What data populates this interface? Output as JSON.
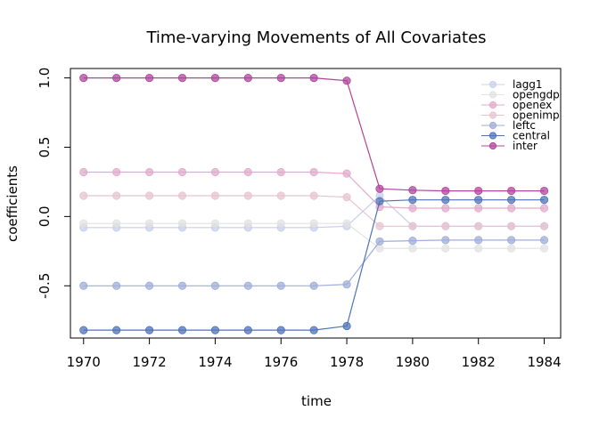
{
  "chart_data": {
    "type": "line",
    "title": "Time-varying Movements of All Covariates",
    "xlabel": "time",
    "ylabel": "coefficients",
    "x": [
      1970,
      1971,
      1972,
      1973,
      1974,
      1975,
      1976,
      1977,
      1978,
      1979,
      1980,
      1981,
      1982,
      1983,
      1984
    ],
    "xticks": [
      1970,
      1972,
      1974,
      1976,
      1978,
      1980,
      1982,
      1984
    ],
    "yticks": [
      -0.5,
      0.0,
      0.5,
      1.0
    ],
    "ytick_labels": [
      "-0.5",
      "0.0",
      "0.5",
      "1.0"
    ],
    "xlim": [
      1969.6,
      1984.5
    ],
    "ylim": [
      -0.877,
      1.068
    ],
    "grid": false,
    "legend_position": "top-right",
    "series": [
      {
        "name": "lagg1",
        "color": "#c9cfea",
        "values": [
          -0.08,
          -0.08,
          -0.08,
          -0.08,
          -0.08,
          -0.08,
          -0.08,
          -0.08,
          -0.07,
          0.15,
          -0.07,
          -0.07,
          -0.07,
          -0.07,
          -0.07
        ]
      },
      {
        "name": "opengdp",
        "color": "#e2e2e2",
        "values": [
          -0.05,
          -0.05,
          -0.05,
          -0.05,
          -0.05,
          -0.05,
          -0.05,
          -0.05,
          -0.05,
          -0.23,
          -0.23,
          -0.23,
          -0.23,
          -0.23,
          -0.23
        ]
      },
      {
        "name": "openex",
        "color": "#e3a9cc",
        "values": [
          0.32,
          0.32,
          0.32,
          0.32,
          0.32,
          0.32,
          0.32,
          0.32,
          0.31,
          0.07,
          0.06,
          0.06,
          0.06,
          0.06,
          0.06
        ]
      },
      {
        "name": "openimp",
        "color": "#e6c4cf",
        "values": [
          0.15,
          0.15,
          0.15,
          0.15,
          0.15,
          0.15,
          0.15,
          0.15,
          0.14,
          -0.07,
          -0.07,
          -0.07,
          -0.07,
          -0.07,
          -0.07
        ]
      },
      {
        "name": "leftc",
        "color": "#9fadd8",
        "values": [
          -0.5,
          -0.5,
          -0.5,
          -0.5,
          -0.5,
          -0.5,
          -0.5,
          -0.5,
          -0.49,
          -0.18,
          -0.175,
          -0.17,
          -0.17,
          -0.17,
          -0.17
        ]
      },
      {
        "name": "central",
        "color": "#4f73b8",
        "values": [
          -0.82,
          -0.82,
          -0.82,
          -0.82,
          -0.82,
          -0.82,
          -0.82,
          -0.82,
          -0.79,
          0.11,
          0.12,
          0.12,
          0.12,
          0.12,
          0.12
        ]
      },
      {
        "name": "inter",
        "color": "#b0449c",
        "values": [
          1.0,
          1.0,
          1.0,
          1.0,
          1.0,
          1.0,
          1.0,
          1.0,
          0.98,
          0.2,
          0.19,
          0.185,
          0.185,
          0.185,
          0.185
        ]
      }
    ]
  }
}
